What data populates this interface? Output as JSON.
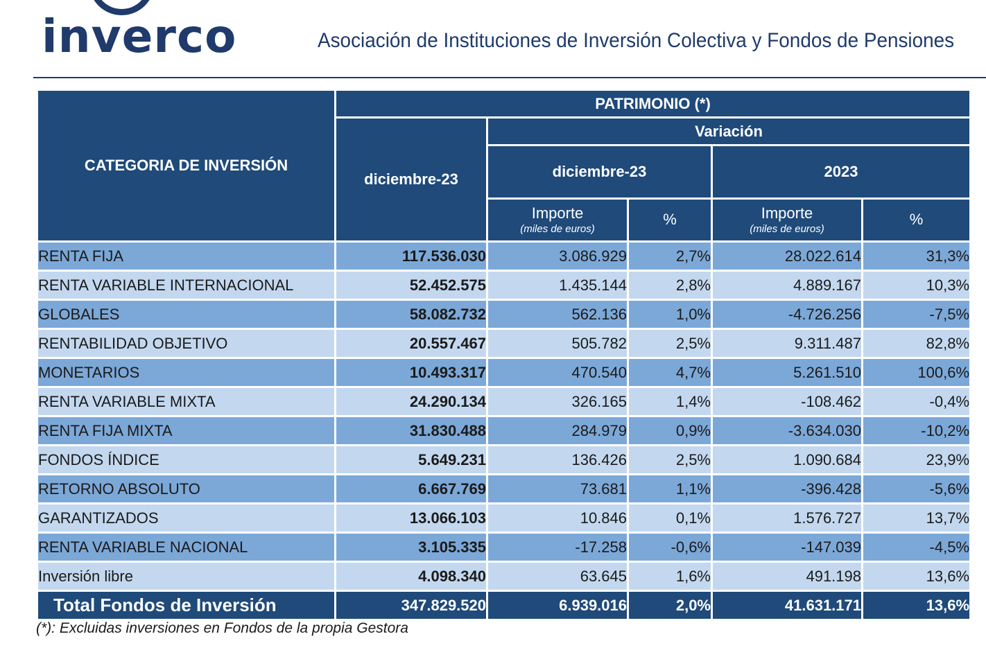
{
  "header": {
    "logo_text": "inverco",
    "org_title": "Asociación de Instituciones de Inversión Colectiva y Fondos de Pensiones"
  },
  "table": {
    "col_category": "CATEGORIA DE INVERSIÓN",
    "group_patrimonio": "PATRIMONIO (*)",
    "group_variacion": "Variación",
    "col_patrimonio_date": "diciembre-23",
    "col_var_month": "diciembre-23",
    "col_var_year": "2023",
    "sub_importe": "Importe",
    "sub_unit": "(miles de euros)",
    "sub_pct": "%",
    "rows": [
      {
        "cat": "RENTA FIJA",
        "patrimonio": "117.536.030",
        "imp_m": "3.086.929",
        "pct_m": "2,7%",
        "imp_y": "28.022.614",
        "pct_y": "31,3%"
      },
      {
        "cat": "RENTA VARIABLE INTERNACIONAL",
        "patrimonio": "52.452.575",
        "imp_m": "1.435.144",
        "pct_m": "2,8%",
        "imp_y": "4.889.167",
        "pct_y": "10,3%"
      },
      {
        "cat": "GLOBALES",
        "patrimonio": "58.082.732",
        "imp_m": "562.136",
        "pct_m": "1,0%",
        "imp_y": "-4.726.256",
        "pct_y": "-7,5%"
      },
      {
        "cat": "RENTABILIDAD OBJETIVO",
        "patrimonio": "20.557.467",
        "imp_m": "505.782",
        "pct_m": "2,5%",
        "imp_y": "9.311.487",
        "pct_y": "82,8%"
      },
      {
        "cat": "MONETARIOS",
        "patrimonio": "10.493.317",
        "imp_m": "470.540",
        "pct_m": "4,7%",
        "imp_y": "5.261.510",
        "pct_y": "100,6%"
      },
      {
        "cat": "RENTA VARIABLE MIXTA",
        "patrimonio": "24.290.134",
        "imp_m": "326.165",
        "pct_m": "1,4%",
        "imp_y": "-108.462",
        "pct_y": "-0,4%"
      },
      {
        "cat": "RENTA FIJA MIXTA",
        "patrimonio": "31.830.488",
        "imp_m": "284.979",
        "pct_m": "0,9%",
        "imp_y": "-3.634.030",
        "pct_y": "-10,2%"
      },
      {
        "cat": "FONDOS ÍNDICE",
        "patrimonio": "5.649.231",
        "imp_m": "136.426",
        "pct_m": "2,5%",
        "imp_y": "1.090.684",
        "pct_y": "23,9%"
      },
      {
        "cat": "RETORNO ABSOLUTO",
        "patrimonio": "6.667.769",
        "imp_m": "73.681",
        "pct_m": "1,1%",
        "imp_y": "-396.428",
        "pct_y": "-5,6%"
      },
      {
        "cat": "GARANTIZADOS",
        "patrimonio": "13.066.103",
        "imp_m": "10.846",
        "pct_m": "0,1%",
        "imp_y": "1.576.727",
        "pct_y": "13,7%"
      },
      {
        "cat": "RENTA VARIABLE NACIONAL",
        "patrimonio": "3.105.335",
        "imp_m": "-17.258",
        "pct_m": "-0,6%",
        "imp_y": "-147.039",
        "pct_y": "-4,5%"
      },
      {
        "cat": "Inversión libre",
        "patrimonio": "4.098.340",
        "imp_m": "63.645",
        "pct_m": "1,6%",
        "imp_y": "491.198",
        "pct_y": "13,6%"
      }
    ],
    "total": {
      "cat": "Total Fondos de Inversión",
      "patrimonio": "347.829.520",
      "imp_m": "6.939.016",
      "pct_m": "2,0%",
      "imp_y": "41.631.171",
      "pct_y": "13,6%"
    }
  },
  "footnote": "(*): Excluidas inversiones en Fondos de la propia Gestora",
  "colors": {
    "header_bg": "#1f4a7a",
    "row_dark": "#7ca8d8",
    "row_light": "#c3d8ef",
    "brand": "#1f3a6b"
  }
}
